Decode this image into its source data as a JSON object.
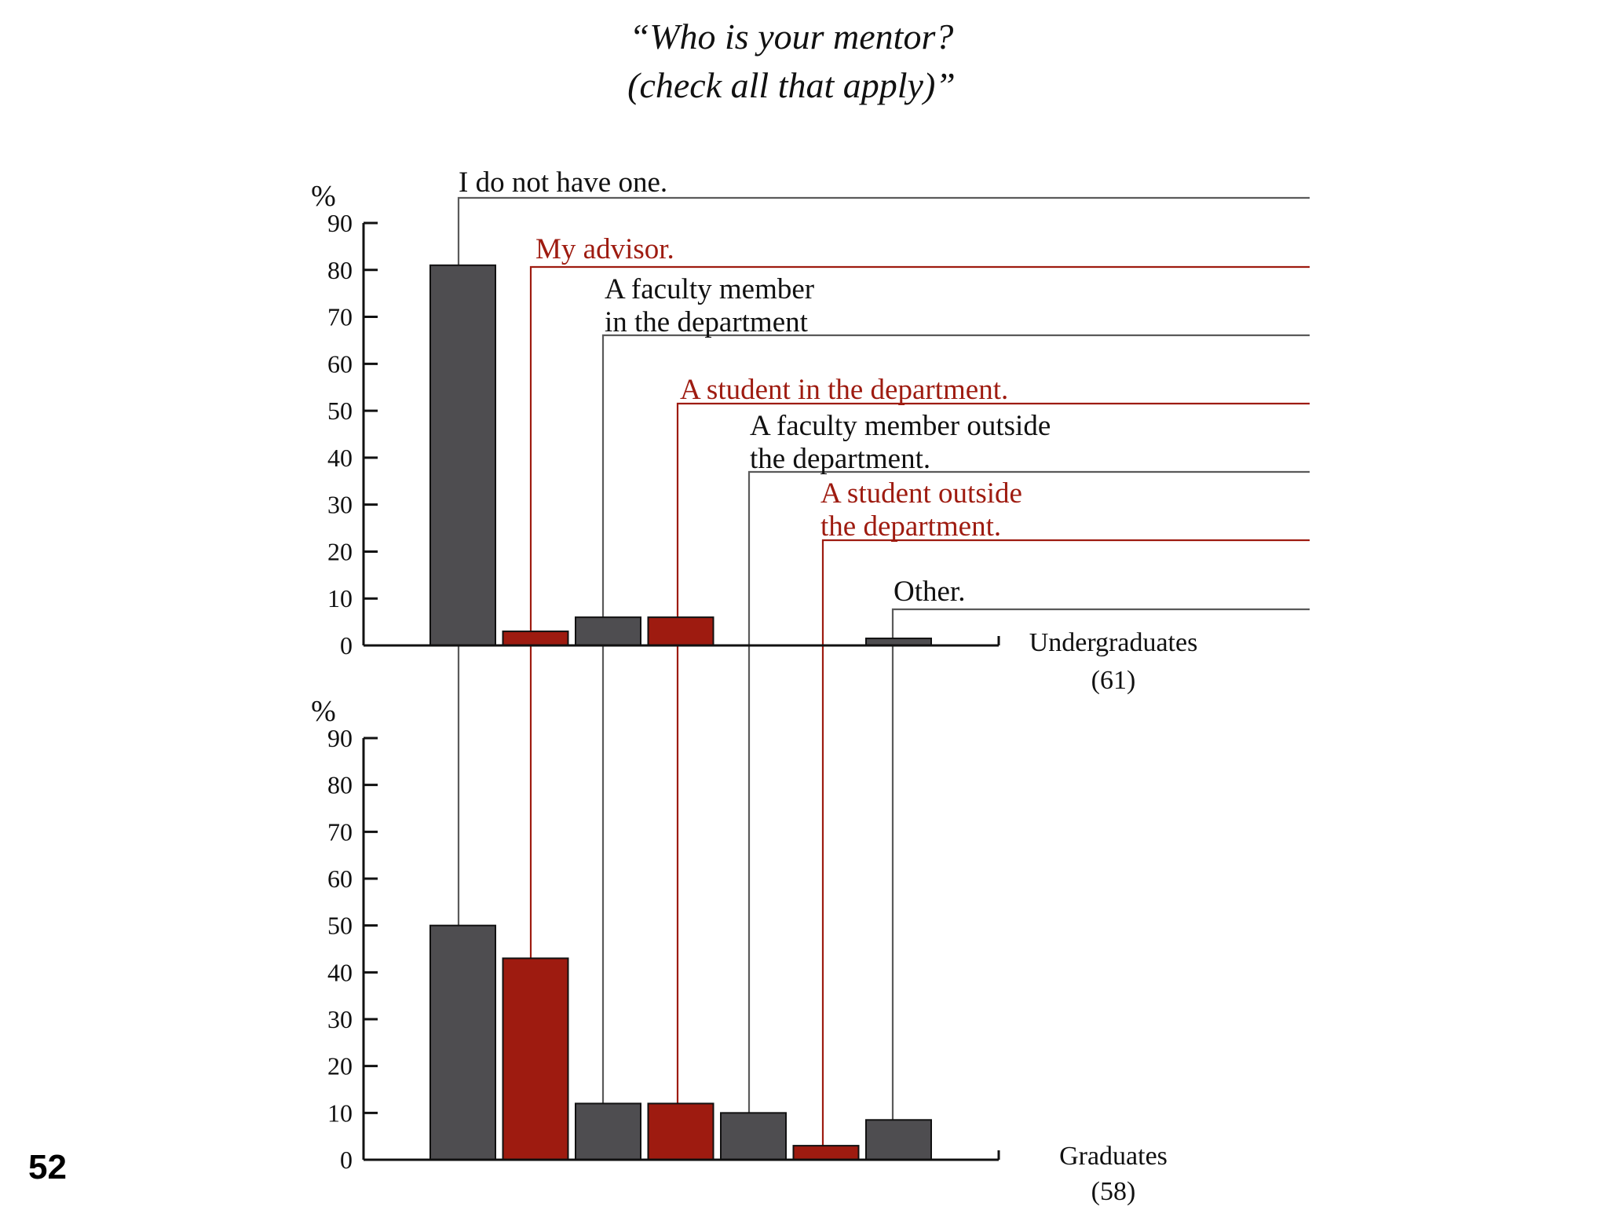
{
  "slide_number": "52",
  "colors": {
    "gray": "#4e4d50",
    "red": "#9e1b10",
    "leader_gray": "#5a5a5a",
    "leader_red": "#9e1b10",
    "axis": "#111111"
  },
  "chart_data": {
    "type": "bar",
    "title": [
      "“Who is your mentor?",
      "(check all that apply)”"
    ],
    "categories": [
      {
        "lines": [
          "I do not have one."
        ],
        "color": "gray"
      },
      {
        "lines": [
          "My advisor."
        ],
        "color": "red"
      },
      {
        "lines": [
          "A faculty member",
          "in the department"
        ],
        "color": "gray"
      },
      {
        "lines": [
          "A student in the department."
        ],
        "color": "red"
      },
      {
        "lines": [
          "A faculty member outside",
          "the department."
        ],
        "color": "gray"
      },
      {
        "lines": [
          "A student outside",
          "the department."
        ],
        "color": "red"
      },
      {
        "lines": [
          "Other."
        ],
        "color": "gray"
      }
    ],
    "panels": [
      {
        "name": "Undergraduates",
        "n": "(61)",
        "ylabel": "%",
        "ylim": [
          0,
          90
        ],
        "yticks": [
          0,
          10,
          20,
          30,
          40,
          50,
          60,
          70,
          80,
          90
        ],
        "values": [
          81,
          3,
          6,
          6,
          0,
          0,
          1.5
        ]
      },
      {
        "name": "Graduates",
        "n": "(58)",
        "ylabel": "%",
        "ylim": [
          0,
          90
        ],
        "yticks": [
          0,
          10,
          20,
          30,
          40,
          50,
          60,
          70,
          80,
          90
        ],
        "values": [
          50,
          43,
          12,
          12,
          10,
          3,
          8.5
        ]
      }
    ]
  }
}
